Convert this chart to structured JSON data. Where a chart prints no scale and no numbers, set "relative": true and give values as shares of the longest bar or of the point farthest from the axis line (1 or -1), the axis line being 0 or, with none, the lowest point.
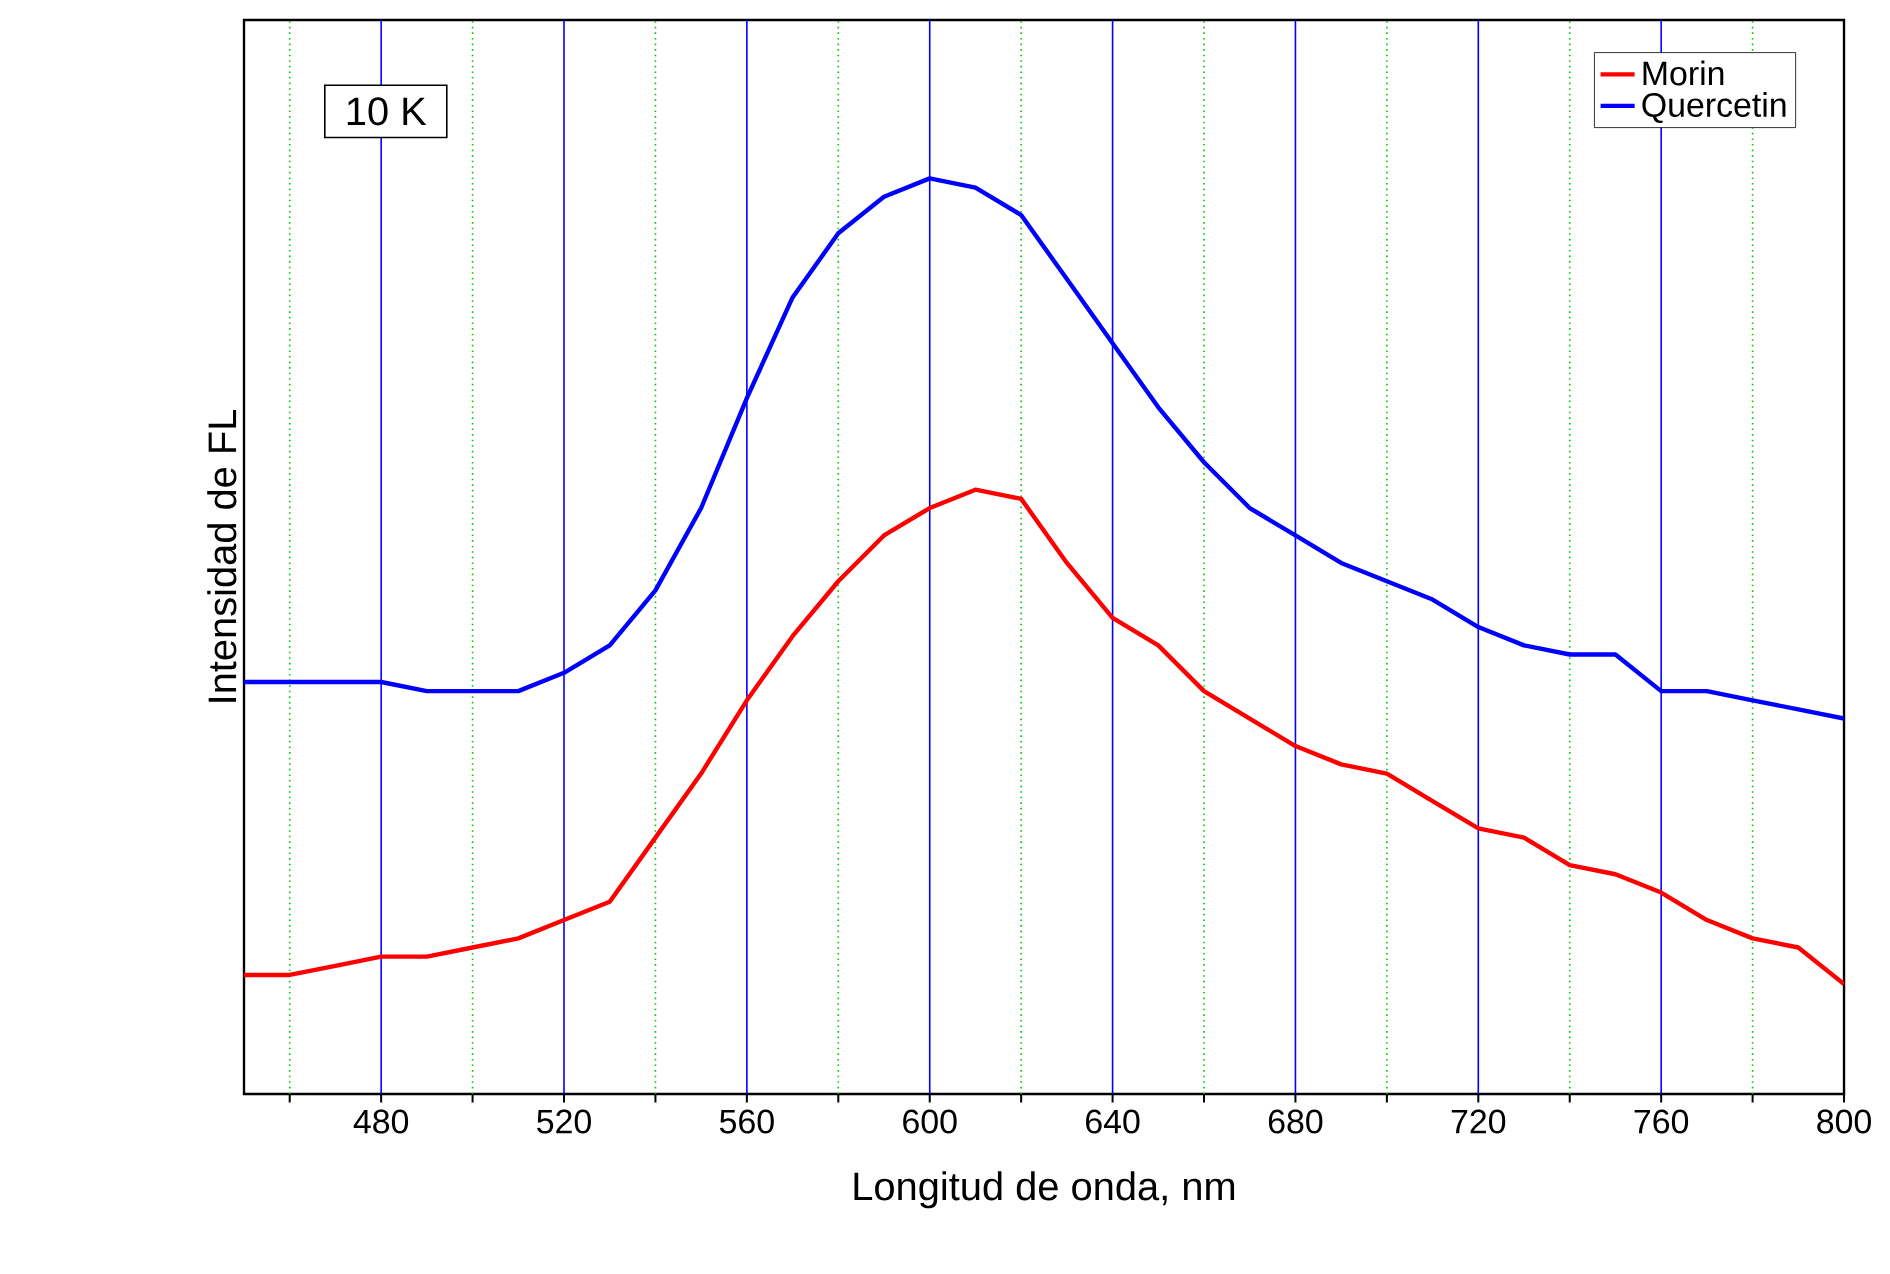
{
  "chart_data": {
    "type": "line",
    "xlabel": "Longitud de onda, nm",
    "ylabel": "Intensidad de FL",
    "relative": true,
    "annotations": [
      "10 K"
    ],
    "x": [
      450,
      460,
      470,
      480,
      490,
      500,
      510,
      520,
      530,
      540,
      550,
      560,
      570,
      580,
      590,
      600,
      610,
      620,
      630,
      640,
      650,
      660,
      670,
      680,
      690,
      700,
      710,
      720,
      730,
      740,
      750,
      760,
      770,
      780,
      790,
      800
    ],
    "series": [
      {
        "name": "Morin",
        "color": "#ff0000",
        "values": [
          0.13,
          0.13,
          0.14,
          0.15,
          0.15,
          0.16,
          0.17,
          0.19,
          0.21,
          0.28,
          0.35,
          0.43,
          0.5,
          0.56,
          0.61,
          0.64,
          0.66,
          0.65,
          0.58,
          0.52,
          0.49,
          0.44,
          0.41,
          0.38,
          0.36,
          0.35,
          0.32,
          0.29,
          0.28,
          0.25,
          0.24,
          0.22,
          0.19,
          0.17,
          0.16,
          0.12
        ]
      },
      {
        "name": "Quercetin",
        "color": "#0000ff",
        "values": [
          0.45,
          0.45,
          0.45,
          0.45,
          0.44,
          0.44,
          0.44,
          0.46,
          0.49,
          0.55,
          0.64,
          0.76,
          0.87,
          0.94,
          0.98,
          1.0,
          0.99,
          0.96,
          0.89,
          0.82,
          0.75,
          0.69,
          0.64,
          0.61,
          0.58,
          0.56,
          0.54,
          0.51,
          0.49,
          0.48,
          0.48,
          0.44,
          0.44,
          0.43,
          0.42,
          0.41
        ]
      }
    ],
    "xlim": [
      450,
      800
    ],
    "xticks": [
      {
        "value": 460,
        "label": null
      },
      480,
      {
        "value": 500,
        "label": null
      },
      520,
      {
        "value": 540,
        "label": null
      },
      560,
      {
        "value": 580,
        "label": null
      },
      600,
      {
        "value": 620,
        "label": null
      },
      640,
      {
        "value": 660,
        "label": null
      },
      680,
      {
        "value": 700,
        "label": null
      },
      720,
      {
        "value": 740,
        "label": null
      },
      760,
      {
        "value": 780,
        "label": null
      },
      800
    ],
    "grid": "x",
    "legend": "top right",
    "marker": "none",
    "line_style": "solid"
  }
}
